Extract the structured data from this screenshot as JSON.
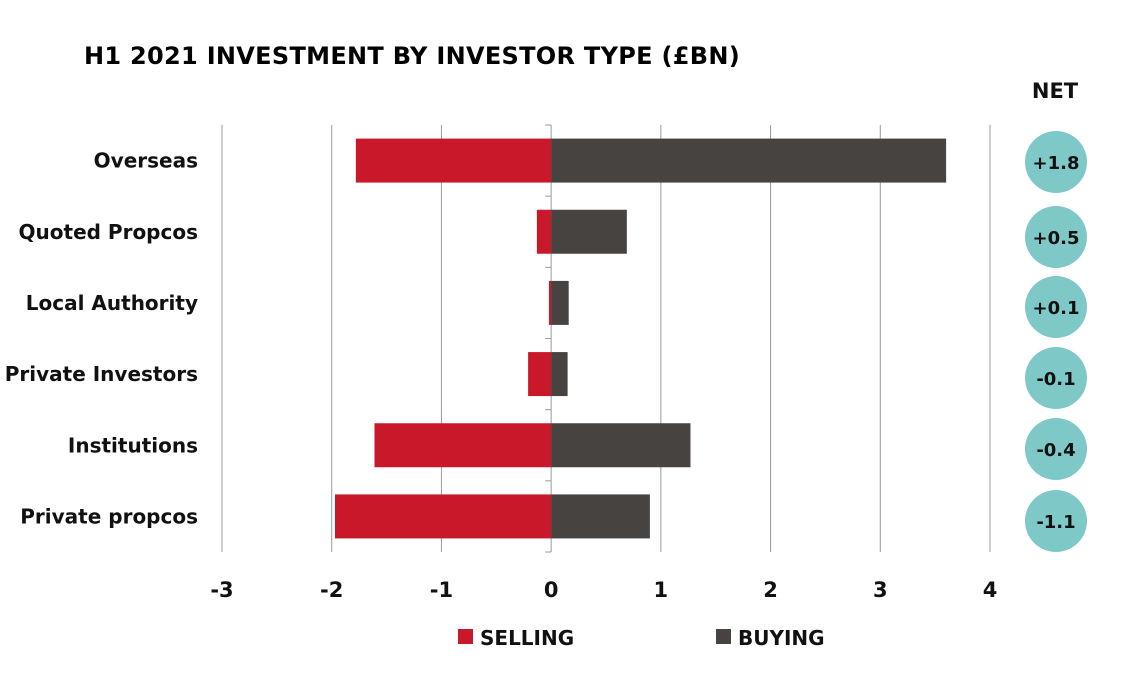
{
  "chart_data": {
    "type": "bar",
    "orientation": "horizontal",
    "stacked": "diverging",
    "title": "H1 2021 INVESTMENT BY INVESTOR TYPE (£BN)",
    "categories": [
      "Overseas",
      "Quoted Propcos",
      "Local Authority",
      "Private Investors",
      "Institutions",
      "Private propcos"
    ],
    "series": [
      {
        "name": "SELLING",
        "color": "#c8182a",
        "values": [
          -1.78,
          -0.13,
          -0.02,
          -0.21,
          -1.61,
          -1.97
        ]
      },
      {
        "name": "BUYING",
        "color": "#464340",
        "values": [
          3.6,
          0.69,
          0.16,
          0.15,
          1.27,
          0.9
        ]
      }
    ],
    "xlim": [
      -3,
      4
    ],
    "xticks": [
      "-3",
      "-2",
      "-1",
      "0",
      "1",
      "2",
      "3",
      "4"
    ],
    "grid": true,
    "legend_position": "bottom",
    "net_header": "NET",
    "net_values": [
      "+1.8",
      "+0.5",
      "+0.1",
      "-0.1",
      "-0.4",
      "-1.1"
    ],
    "net_color": "#7ec8c8"
  }
}
